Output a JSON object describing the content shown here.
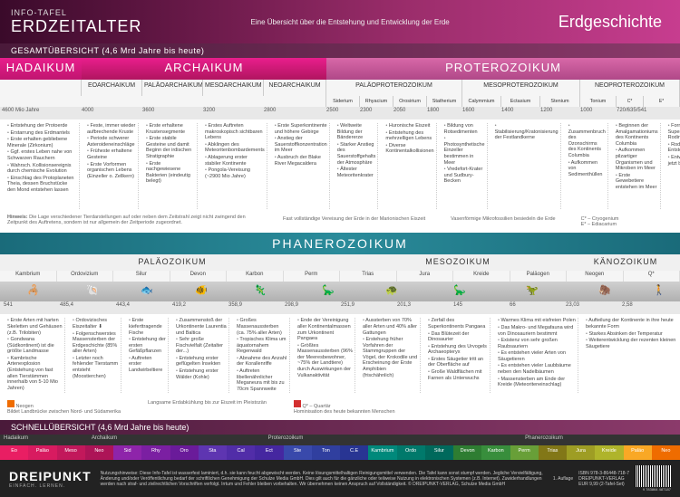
{
  "header": {
    "info_label": "INFO-TAFEL",
    "title": "ERDZEITALTER",
    "subtitle": "Eine Übersicht über die Entstehung und Entwicklung der Erde",
    "right": "Erdgeschichte"
  },
  "overview_label": "GESAMTÜBERSICHT   (4,6 Mrd Jahre bis heute)",
  "eons": {
    "hadaikum": "HADAIKUM",
    "archaikum": "ARCHAIKUM",
    "proterozoikum": "PROTEROZOIKUM"
  },
  "archaikum_eras": [
    "EOARCHAIKUM",
    "PALÄOARCHAIKUM",
    "MESOARCHAIKUM",
    "NEOARCHAIKUM"
  ],
  "protero_eras": [
    "PALÄOPROTEROZOIKUM",
    "MESOPROTEROZOIKUM",
    "NEOPROTEROZOIKUM"
  ],
  "protero_sub": [
    "Siderium",
    "Rhyacium",
    "Orosirium",
    "Statherium",
    "Calymmium",
    "Ectasium",
    "Stenium",
    "Tonium",
    "Cryogenium",
    "Ediacarium"
  ],
  "timeline1": [
    "4600 Mio Jahre",
    "4000",
    "3600",
    "3200",
    "2800",
    "2500",
    "2300",
    "2050",
    "1800",
    "1600",
    "1400",
    "1200",
    "1000",
    "720/635/541"
  ],
  "col1": [
    "Entstehung der Protoerde",
    "Erstarrung des Erdmantels",
    "Erste erhalten gebliebene Minerale (Zirkonium)",
    "Ggf. erstes Leben nahe von Schwarzen Rauchern",
    "Wahrsch. Kollisionsereignis durch chemische Evolution",
    "Einschlag des Protoplaneten Theia, dessen Bruchstücke den Mond entstehen lassen"
  ],
  "col2": [
    "Feste, immer wieder aufbrechende Kruste",
    "Periode schwerer Asteroideneinschläge",
    "Früheste erhaltene Gesteine",
    "Erste Vorformen organischen Lebens (Einzeller o. Zellkern)"
  ],
  "col3": [
    "Erste erhaltene Krustensegmente",
    "Erste stabile Gesteine und damit Beginn der irdischen Stratigraphie",
    "Erste nachgewiesene Bakterien (eindeutig belegt)"
  ],
  "col4": [
    "Erstes Auftreten makroskopisch sichtbaren Lebens",
    "Abklingen des Meteoritenbombardements",
    "Ablagerung erster stabiler Kontinente",
    "Pongola-Vereisung (~2900 Mio Jahre)"
  ],
  "col5": [
    "Erste Superkontinente und höhere Gebirge",
    "Anstieg der Sauerstoffkonzentration im Meer",
    "Ausbruch der Blake River Megacaldera"
  ],
  "col6": [
    "Weltweite Bildung der Bändererze",
    "Starker Anstieg des Sauerstoffgehalts der Atmosphäre",
    "Ältester Meteoritenkrater"
  ],
  "col7": [
    "Huronische Eiszeit",
    "Entstehung des mehrzelligen Lebens",
    "Diverse Kontinentalkollisionen"
  ],
  "col8": [
    "Bildung von Rotsedimenten",
    "Photosynthetische Einzeller bestimmen in Meer",
    "Vredefort-Krater und Sudbury-Becken"
  ],
  "col9": [
    "Stabilisierung/Kratonisierung der Festlandkerne"
  ],
  "col10": [
    "Zusammenbruch des Ozonschirms des Kontinents Columbia",
    "Aufkommen von Sedimenthüllen"
  ],
  "col11": [
    "Beginnen der Amalgamationiums des Kontinents Columbia",
    "Aufkommen pilzartiger Organismen und Mikroben im Meer",
    "Erste Gewebetiere entstehen im Meer"
  ],
  "col12": [
    "Formung des Superkontinents Rodinia",
    "Rodinia Entstehung",
    "Entwicklung jetzt bekannten"
  ],
  "col13": [
    "Beginn des Zerfalls von Rodinia in den meisten Festlandskernen (Kratonen) bereits entfalten sind",
    "Es gibt weltweit nur einen Ozean (Mirovia)",
    "Erste Algen sind vorhanden"
  ],
  "hinweis_label": "Hinweis:",
  "hinweis_text": "Die Lage verschiedener Tierdarstellungen auf oder neben dem Zeitstrahl zeigt nicht zwingend den Zeitpunkt des Auftretens, sondern ist nur allgemein der Zeitperiode zugeordnet.",
  "note1": "Fast vollständige Vereisung der Erde in der Marionischen Eiszeit",
  "note2": "Vasenförmige Mikrofossilien besiedeln die Erde",
  "cryo_label": "C* – Cryogenium",
  "edia_label": "E* – Ediacarium",
  "phanero": "PHANEROZOIKUM",
  "phanero_eras": {
    "palao": "PALÄOZOIKUM",
    "meso": "MESOZOIKUM",
    "kano": "KÄNOZOIKUM"
  },
  "periods": [
    "Kambrium",
    "Ordovizium",
    "Silur",
    "Devon",
    "Karbon",
    "Perm",
    "Trias",
    "Jura",
    "Kreide",
    "Paläogen",
    "Neogen",
    "Q*"
  ],
  "timeline2": [
    "541",
    "485,4",
    "443,4",
    "419,2",
    "358,9",
    "298,9",
    "251,9",
    "201,3",
    "145",
    "66",
    "23,03",
    "2,58"
  ],
  "pcol1": [
    "Erste Arten mit harten Skeletten und Gehäusen (z.B. Trilobiten)",
    "Gondwana (Südkontinent) ist die größte Landmasse",
    "Kambrische Artenexplosion (Entstehung von fast allen Tierstämmen innerhalb von 5-10 Mio Jahren)"
  ],
  "pcol2": [
    "Ordovizisches Eiszeitalter ⬇",
    "Folgenschwerstes Massensterben der Erdgeschichte (85% aller Arten)",
    "Letzter noch fehlender Tierstamm entsteht (Moostierchen)"
  ],
  "pcol3": [
    "Erste kieferttragende Fische",
    "Entstehung der ersten Gefäßpflanzen",
    "Auftreten erster Landwirbeltiere"
  ],
  "pcol4": [
    "Zusammenstoß der Urkontinente Laurentia und Baltica",
    "Sehr große Fischvielfalt (Zeitalter der...)",
    "Entstehung erster geflügelten Insekten",
    "Entstehung erster Wälder (Kohle)"
  ],
  "pcol5": [
    "Großes Massenaussterben (ca. 75% aller Arten)",
    "Tropisches Klima um äquatornahem Regenwald",
    "Abnahme des Anzahl der Korallenriffe",
    "Auftreten libellenähnlicher Meganeura mit bis zu 70cm Spannweite"
  ],
  "pcol6": [
    "Ende der Vereinigung aller Kontinentalmassen zum Urkontinent Pangaea",
    "Größtes Massenaussterben (96% der Meeresbewohner, ~75% der Landtiere) durch Auswirkungen der Vulkanaktivität"
  ],
  "pcol7": [
    "Aussterben von 70% aller Arten und 40% aller Gattungen",
    "Erstehung früher Vorfahren der Stammgruppen der Vögel, der Krokodile und Erscheinung der Erste Amphibien (frischähnlich)"
  ],
  "pcol8": [
    "Zerfall des Superkontinents Pangaea",
    "Das Blütezeit der Dinosaurier",
    "Entstehung des Urvogels Archaeopteryx",
    "Erstes Säugetier tritt an der Oberfläche auf",
    "Große Waldflächen mit Farnen als Unterwuchs"
  ],
  "pcol9": [
    "Warmes Klima mit eisfreien Polen",
    "Das Makro- und Megafauna wird von Dinosauriern bestimmt",
    "Existenz von sehr großen Raubsauriern",
    "Es entstehen vieler Arten von Säugetieren",
    "Es entstehen vieler Laubbäume neben den Nadelbäumen",
    "Massensterben am Ende der Kreide (Meteoriteneinschlag)"
  ],
  "pcol10": [
    "Aufteilung der Kontinente in ihre heute bekannte Form",
    "Starkes Absinken der Temperatur",
    "Weiterentwicklung der rezenten kleinen Säugetiere"
  ],
  "legend": {
    "neogen": "Neogen",
    "neogen_text": "Bildet Landbrücke zwischen Nord- und Südamerika",
    "q": "Q* – Quartär",
    "q_text": "Langsame Erdabkühlung bis zur Eiszeit im Pleistozän",
    "q_text2": "Hominisation des heute bekannten Menschen"
  },
  "schnell_label": "SCHNELLÜBERSICHT   (4,6 Mrd Jahre bis heute)",
  "strip_eons": [
    "Hadaikum",
    "Archaikum",
    "Proterozoikum",
    "Phanerozoikum"
  ],
  "strip_cells": [
    {
      "l": "Eo",
      "c": "#e91e63"
    },
    {
      "l": "Paläo",
      "c": "#d81b60"
    },
    {
      "l": "Meso",
      "c": "#c2185b"
    },
    {
      "l": "Neo",
      "c": "#ad1457"
    },
    {
      "l": "Sid",
      "c": "#8e24aa"
    },
    {
      "l": "Rhy",
      "c": "#7b1fa2"
    },
    {
      "l": "Oro",
      "c": "#6a1b9a"
    },
    {
      "l": "Sta",
      "c": "#5e35b1"
    },
    {
      "l": "Cal",
      "c": "#512da8"
    },
    {
      "l": "Ect",
      "c": "#4527a0"
    },
    {
      "l": "Ste",
      "c": "#3949ab"
    },
    {
      "l": "Ton",
      "c": "#303f9f"
    },
    {
      "l": "C.E",
      "c": "#283593"
    },
    {
      "l": "Kambrium",
      "c": "#00897b"
    },
    {
      "l": "Ordo",
      "c": "#00796b"
    },
    {
      "l": "Silur",
      "c": "#00695c"
    },
    {
      "l": "Devon",
      "c": "#2e7d32"
    },
    {
      "l": "Karbon",
      "c": "#388e3c"
    },
    {
      "l": "Perm",
      "c": "#689f38"
    },
    {
      "l": "Trias",
      "c": "#827717"
    },
    {
      "l": "Jura",
      "c": "#9e9d24"
    },
    {
      "l": "Kreide",
      "c": "#afb42b"
    },
    {
      "l": "Paläo",
      "c": "#f9a825"
    },
    {
      "l": "Neo",
      "c": "#ef6c00"
    }
  ],
  "footer": {
    "logo": "DREIPUNKT",
    "logo_sub": "EINFACH. LERNEN.",
    "text": "Nutzungshinweise: Diese Info-Tafel ist wasserfest laminiert, d.h. sie kann feucht abgewischt werden. Keine lösungsmittelhaltigen Reinigungsmittel verwenden. Die Tafel kann sonst stumpf werden. Jegliche Vervielfältigung, Änderung und/oder Veröffentlichung bedarf der schriftlichen Genehmigung der Schulze Media GmbH. Dies gilt auch für die gänzliche oder teilweise Nutzung in elektronischen Systemen (z.B. Internet). Zuwiderhandlungen werden nach straf- und zivilrechtlichen Vorschriften verfolgt. Irrtum und Fehler bleiben vorbehalten. Wir übernehmen keinen Anspruch auf Vollständigkeit. © DREIPUNKT-VERLAG, Schulze Media GmbH",
    "edition": "1. Auflage",
    "isbn": "ISBN 978-3-86448-718-7",
    "publisher": "DREIPUNKT-VERLAG",
    "price": "EUR 9,99   (2-Tafel-Set)",
    "barcode_num": "9 783864 487187"
  }
}
